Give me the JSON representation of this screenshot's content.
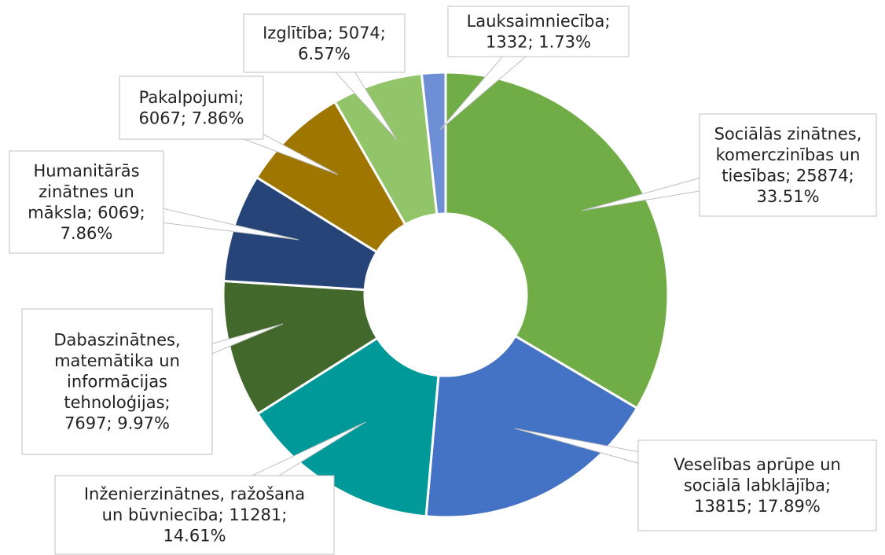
{
  "chart_data": {
    "type": "donut",
    "values": [
      25874,
      13815,
      11281,
      7697,
      6069,
      6067,
      5074,
      1332
    ],
    "colors": [
      "#70ad47",
      "#4472c4",
      "#009999",
      "#43682b",
      "#264478",
      "#9e7600",
      "#92c46a",
      "#6e8fd6"
    ],
    "value_labels": [
      [
        "Sociālās zinātnes,",
        "komerczinības un",
        "tiesības; 25874;",
        "33.51%"
      ],
      [
        "Veselības aprūpe un",
        "sociālā labklājība;",
        "13815; 17.89%"
      ],
      [
        "Inženierzinātnes, ražošana",
        "un būvniecība; 11281;",
        "14.61%"
      ],
      [
        "Dabaszinātnes,",
        "matemātika un",
        "informācijas",
        "tehnoloģijas;",
        "7697; 9.97%"
      ],
      [
        "Humanitārās",
        "zinātnes un",
        "māksla; 6069;",
        "7.86%"
      ],
      [
        "Pakalpojumi;",
        "6067; 7.86%"
      ],
      [
        "Izglītība; 5074;",
        "6.57%"
      ],
      [
        "Lauksaimniecība;",
        "1332; 1.73%"
      ]
    ]
  }
}
